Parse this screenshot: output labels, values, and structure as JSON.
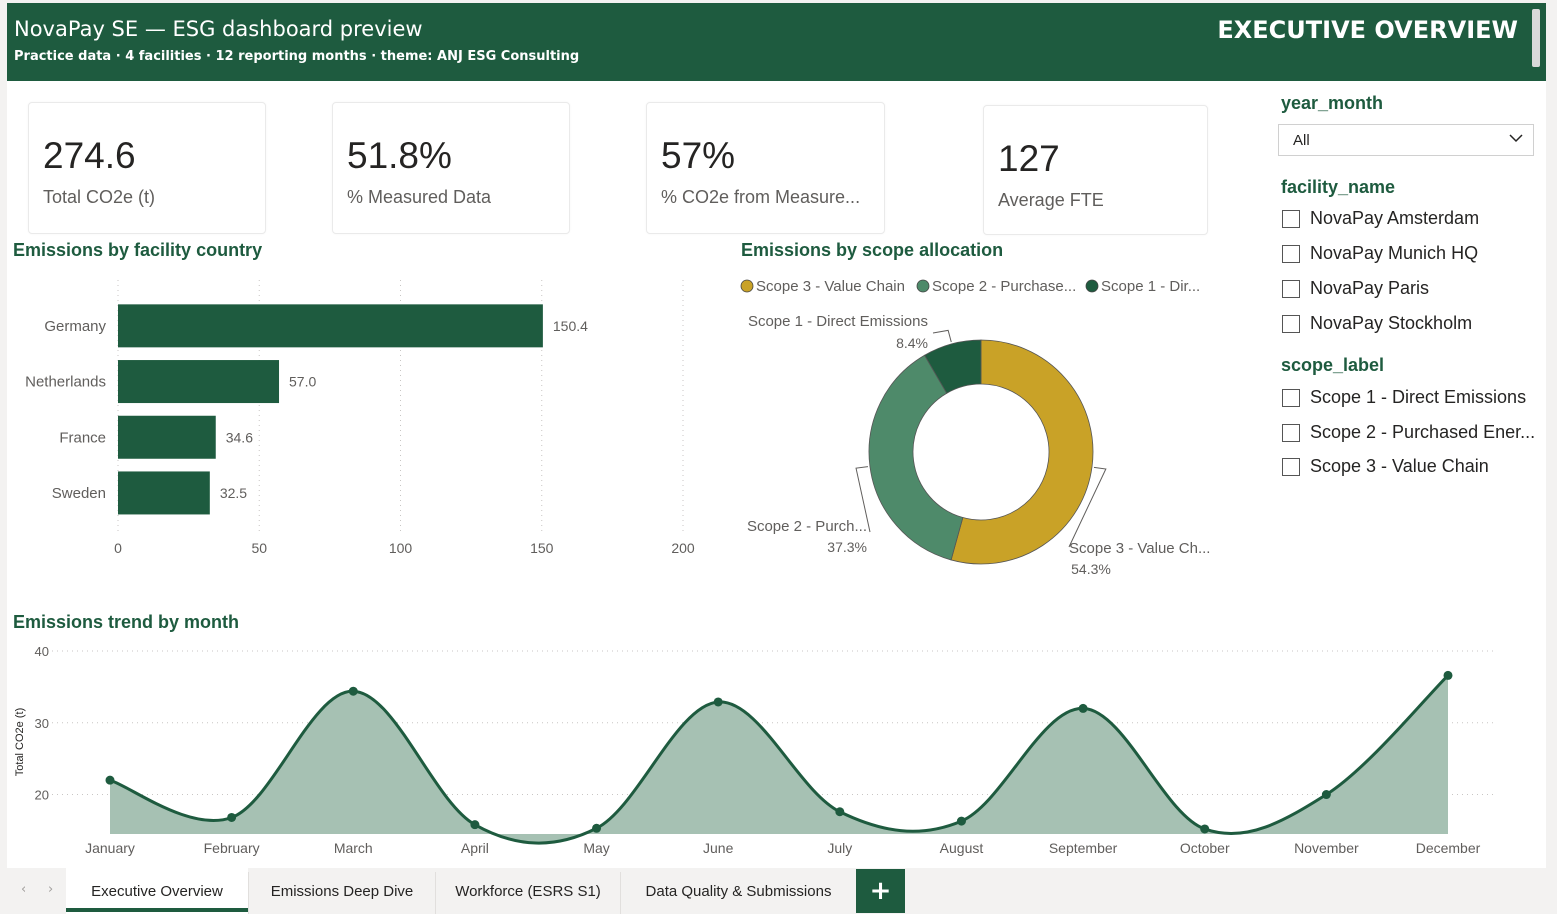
{
  "header": {
    "title": "NovaPay SE — ESG dashboard preview",
    "subtitle": "Practice data · 4 facilities · 12 reporting months · theme: ANJ ESG Consulting",
    "page_heading": "EXECUTIVE OVERVIEW"
  },
  "kpis": [
    {
      "value": "274.6",
      "label": "Total CO2e (t)"
    },
    {
      "value": "51.8%",
      "label": "% Measured Data"
    },
    {
      "value": "57%",
      "label": "% CO2e from Measure..."
    },
    {
      "value": "127",
      "label": "Average FTE"
    }
  ],
  "visual_titles": {
    "country": "Emissions by facility country",
    "scope": "Emissions by scope allocation",
    "trend": "Emissions trend by month"
  },
  "slicers": {
    "year_month": {
      "title": "year_month",
      "value": "All"
    },
    "facility": {
      "title": "facility_name",
      "options": [
        "NovaPay Amsterdam",
        "NovaPay Munich HQ",
        "NovaPay Paris",
        "NovaPay Stockholm"
      ]
    },
    "scope": {
      "title": "scope_label",
      "options": [
        "Scope 1 - Direct Emissions",
        "Scope 2 - Purchased Ener...",
        "Scope 3 - Value Chain"
      ]
    }
  },
  "tabs": {
    "items": [
      "Executive Overview",
      "Emissions Deep Dive",
      "Workforce (ESRS S1)",
      "Data Quality & Submissions"
    ],
    "active": "Executive Overview",
    "add_label": "+",
    "prev_label": "‹",
    "next_label": "›"
  },
  "colors": {
    "brand": "#1e5b3f",
    "scope1": "#1e5b3f",
    "scope2": "#4e8a6a",
    "scope3": "#c9a227",
    "area_fill": "#a6c1b3"
  },
  "chart_data": [
    {
      "type": "bar",
      "orientation": "horizontal",
      "title": "Emissions by facility country",
      "categories": [
        "Germany",
        "Netherlands",
        "France",
        "Sweden"
      ],
      "values": [
        150.4,
        57.0,
        34.6,
        32.5
      ],
      "data_labels": [
        "150.4",
        "57.0",
        "34.6",
        "32.5"
      ],
      "xlim": [
        0,
        200
      ],
      "xticks": [
        0,
        50,
        100,
        150,
        200
      ],
      "grid": true
    },
    {
      "type": "pie",
      "donut": true,
      "title": "Emissions by scope allocation",
      "legend": [
        "Scope 3 - Value Chain",
        "Scope 2 - Purchase...",
        "Scope 1 - Dir..."
      ],
      "legend_position": "top",
      "slices": [
        {
          "name": "Scope 3 - Value Chain",
          "value": 54.3,
          "label": "Scope 3 - Value Ch...",
          "pct": "54.3%"
        },
        {
          "name": "Scope 2 - Purchased Energy",
          "value": 37.3,
          "label": "Scope 2 - Purch...",
          "pct": "37.3%"
        },
        {
          "name": "Scope 1 - Direct Emissions",
          "value": 8.4,
          "label": "Scope 1 - Direct Emissions",
          "pct": "8.4%"
        }
      ]
    },
    {
      "type": "area",
      "title": "Emissions trend by month",
      "ylabel": "Total CO2e (t)",
      "categories": [
        "January",
        "February",
        "March",
        "April",
        "May",
        "June",
        "July",
        "August",
        "September",
        "October",
        "November",
        "December"
      ],
      "values": [
        22.0,
        16.8,
        34.4,
        15.8,
        15.3,
        32.9,
        17.6,
        16.3,
        32.0,
        15.2,
        20.0,
        36.6
      ],
      "ylim": [
        14.5,
        40
      ],
      "yticks": [
        20,
        30,
        40
      ],
      "grid": true
    }
  ]
}
